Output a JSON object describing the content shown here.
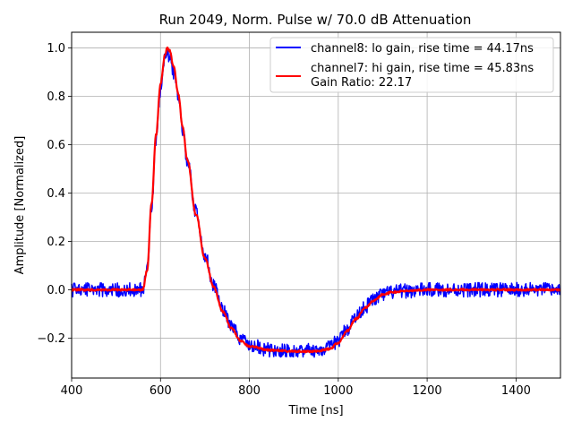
{
  "chart_data": {
    "type": "line",
    "title": "Run 2049, Norm. Pulse w/ 70.0 dB Attenuation",
    "xlabel": "Time [ns]",
    "ylabel": "Amplitude [Normalized]",
    "xlim": [
      400,
      1500
    ],
    "ylim": [
      -0.365,
      1.065
    ],
    "xticks": [
      400,
      600,
      800,
      1000,
      1200,
      1400
    ],
    "yticks": [
      -0.2,
      0.0,
      0.2,
      0.4,
      0.6,
      0.8,
      1.0
    ],
    "ytick_labels": [
      "−0.2",
      "0.0",
      "0.2",
      "0.4",
      "0.6",
      "0.8",
      "1.0"
    ],
    "grid": true,
    "legend_position": "top-right",
    "legend_extra_line": "Gain Ratio: 22.17",
    "series": [
      {
        "name": "channel8: lo gain, rise time = 44.17ns",
        "color": "#0000ff",
        "noise_amplitude": 0.03,
        "x": [
          400,
          500,
          560,
          570,
          580,
          590,
          600,
          610,
          615,
          620,
          630,
          640,
          650,
          660,
          680,
          700,
          720,
          740,
          760,
          780,
          800,
          850,
          900,
          950,
          980,
          1000,
          1020,
          1040,
          1060,
          1080,
          1100,
          1120,
          1150,
          1200,
          1300,
          1400,
          1500
        ],
        "values": [
          0.0,
          0.0,
          0.0,
          0.08,
          0.35,
          0.62,
          0.82,
          0.95,
          0.98,
          0.97,
          0.9,
          0.8,
          0.66,
          0.54,
          0.32,
          0.14,
          0.02,
          -0.08,
          -0.15,
          -0.2,
          -0.23,
          -0.25,
          -0.25,
          -0.25,
          -0.24,
          -0.21,
          -0.16,
          -0.11,
          -0.07,
          -0.04,
          -0.02,
          -0.01,
          -0.005,
          0.0,
          0.0,
          0.0,
          0.0
        ]
      },
      {
        "name": "channel7: hi gain, rise time = 45.83ns",
        "color": "#ff0000",
        "noise_amplitude": 0.004,
        "x": [
          400,
          500,
          560,
          570,
          580,
          590,
          600,
          610,
          615,
          620,
          630,
          640,
          650,
          660,
          680,
          700,
          720,
          740,
          760,
          780,
          800,
          850,
          900,
          950,
          980,
          1000,
          1020,
          1040,
          1060,
          1080,
          1100,
          1120,
          1150,
          1200,
          1300,
          1400,
          1500
        ],
        "values": [
          0.0,
          0.0,
          0.0,
          0.08,
          0.36,
          0.64,
          0.85,
          0.97,
          1.0,
          0.99,
          0.92,
          0.81,
          0.67,
          0.54,
          0.31,
          0.13,
          0.01,
          -0.09,
          -0.16,
          -0.21,
          -0.235,
          -0.25,
          -0.255,
          -0.255,
          -0.245,
          -0.22,
          -0.17,
          -0.12,
          -0.075,
          -0.045,
          -0.02,
          -0.01,
          -0.005,
          0.0,
          0.0,
          0.0,
          0.0
        ]
      }
    ]
  }
}
